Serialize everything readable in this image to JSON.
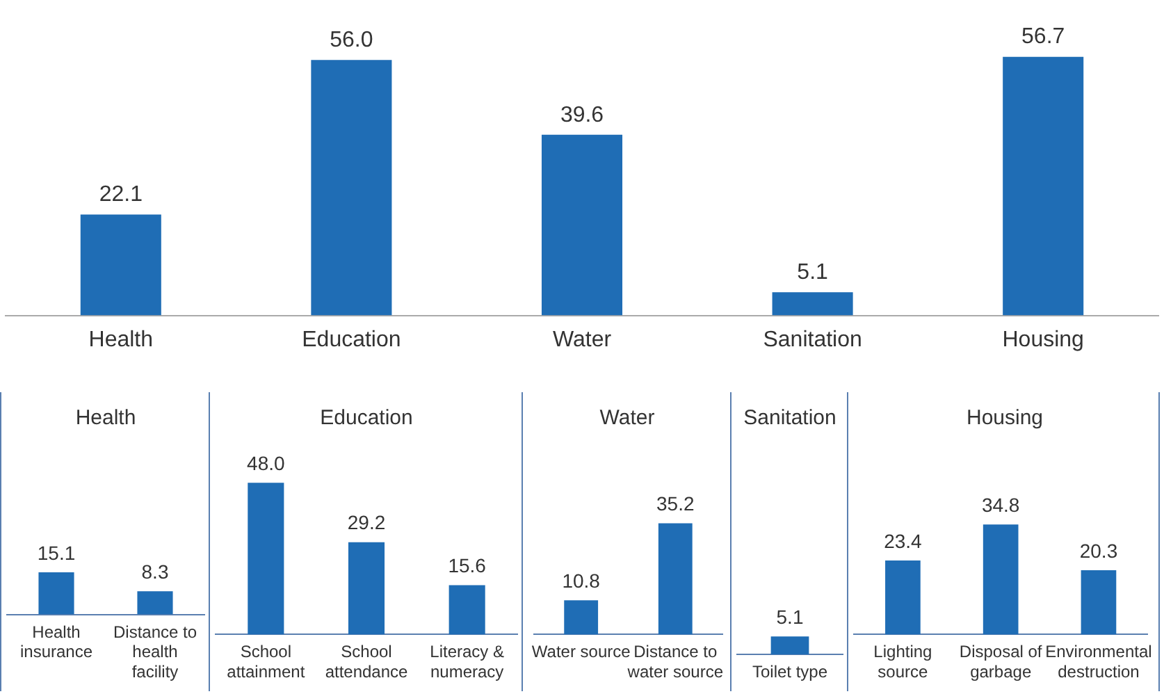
{
  "chart_data": [
    {
      "type": "bar",
      "categories": [
        "Health",
        "Education",
        "Water",
        "Sanitation",
        "Housing"
      ],
      "values": [
        22.1,
        56.0,
        39.6,
        5.1,
        56.7
      ],
      "value_labels": [
        "22.1",
        "56.0",
        "39.6",
        "5.1",
        "56.7"
      ],
      "color": "#1f6db5",
      "grid": false,
      "legend": false
    },
    {
      "type": "bar",
      "title": "Health",
      "categories": [
        "Health insurance",
        "Distance to health facility"
      ],
      "values": [
        15.1,
        8.3
      ],
      "value_labels": [
        "15.1",
        "8.3"
      ],
      "color": "#1f6db5",
      "grid": false,
      "legend": false
    },
    {
      "type": "bar",
      "title": "Education",
      "categories": [
        "School attainment",
        "School attendance",
        "Literacy & numeracy"
      ],
      "values": [
        48.0,
        29.2,
        15.6
      ],
      "value_labels": [
        "48.0",
        "29.2",
        "15.6"
      ],
      "color": "#1f6db5",
      "grid": false,
      "legend": false
    },
    {
      "type": "bar",
      "title": "Water",
      "categories": [
        "Water source",
        "Distance to water source"
      ],
      "values": [
        10.8,
        35.2
      ],
      "value_labels": [
        "10.8",
        "35.2"
      ],
      "color": "#1f6db5",
      "grid": false,
      "legend": false
    },
    {
      "type": "bar",
      "title": "Sanitation",
      "categories": [
        "Toilet type"
      ],
      "values": [
        5.1
      ],
      "value_labels": [
        "5.1"
      ],
      "color": "#1f6db5",
      "grid": false,
      "legend": false
    },
    {
      "type": "bar",
      "title": "Housing",
      "categories": [
        "Lighting source",
        "Disposal of garbage",
        "Environmental destruction"
      ],
      "values": [
        23.4,
        34.8,
        20.3
      ],
      "value_labels": [
        "23.4",
        "34.8",
        "20.3"
      ],
      "color": "#1f6db5",
      "grid": false,
      "legend": false
    }
  ]
}
